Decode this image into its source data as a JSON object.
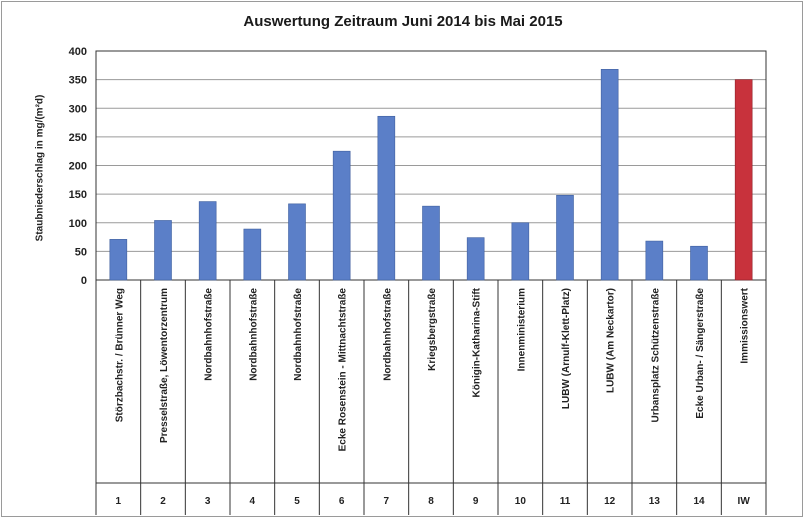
{
  "chart_data": {
    "type": "bar",
    "title": "Auswertung Zeitraum Juni 2014 bis Mai 2015",
    "ylabel": "Staubniederschlag in mg/(m²d)",
    "xlabel": "",
    "ylim": [
      0,
      400
    ],
    "yticks": [
      0,
      50,
      100,
      150,
      200,
      250,
      300,
      350,
      400
    ],
    "grid": "horizontal",
    "categories": [
      "Störzbachstr. / Brünner Weg",
      "Presselstraße, Löwentorzentrum",
      "Nordbahnhofstraße",
      "Nordbahnhofstraße",
      "Nordbahnhofstraße",
      "Ecke Rosenstein - Mittnachtstraße",
      "Nordbahnhofstraße",
      "Kriegsbergstraße",
      "Königin-Katharina-Stift",
      "Innenministerium",
      "LUBW (Arnulf-Klett-Platz)",
      "LUBW (Am Neckartor)",
      "Urbansplatz Schützenstraße",
      "Ecke Urban- / Sängerstraße",
      "Immissionswert"
    ],
    "numbers": [
      "1",
      "2",
      "3",
      "4",
      "5",
      "6",
      "7",
      "8",
      "9",
      "10",
      "11",
      "12",
      "13",
      "14",
      "IW"
    ],
    "values": [
      71,
      104,
      137,
      89,
      133,
      225,
      286,
      129,
      74,
      100,
      148,
      368,
      68,
      59,
      350
    ],
    "colors": {
      "measurement": "#5b7fc8",
      "immissionswert": "#c8323c",
      "grid": "#9a9a9a",
      "axis": "#333333"
    }
  }
}
